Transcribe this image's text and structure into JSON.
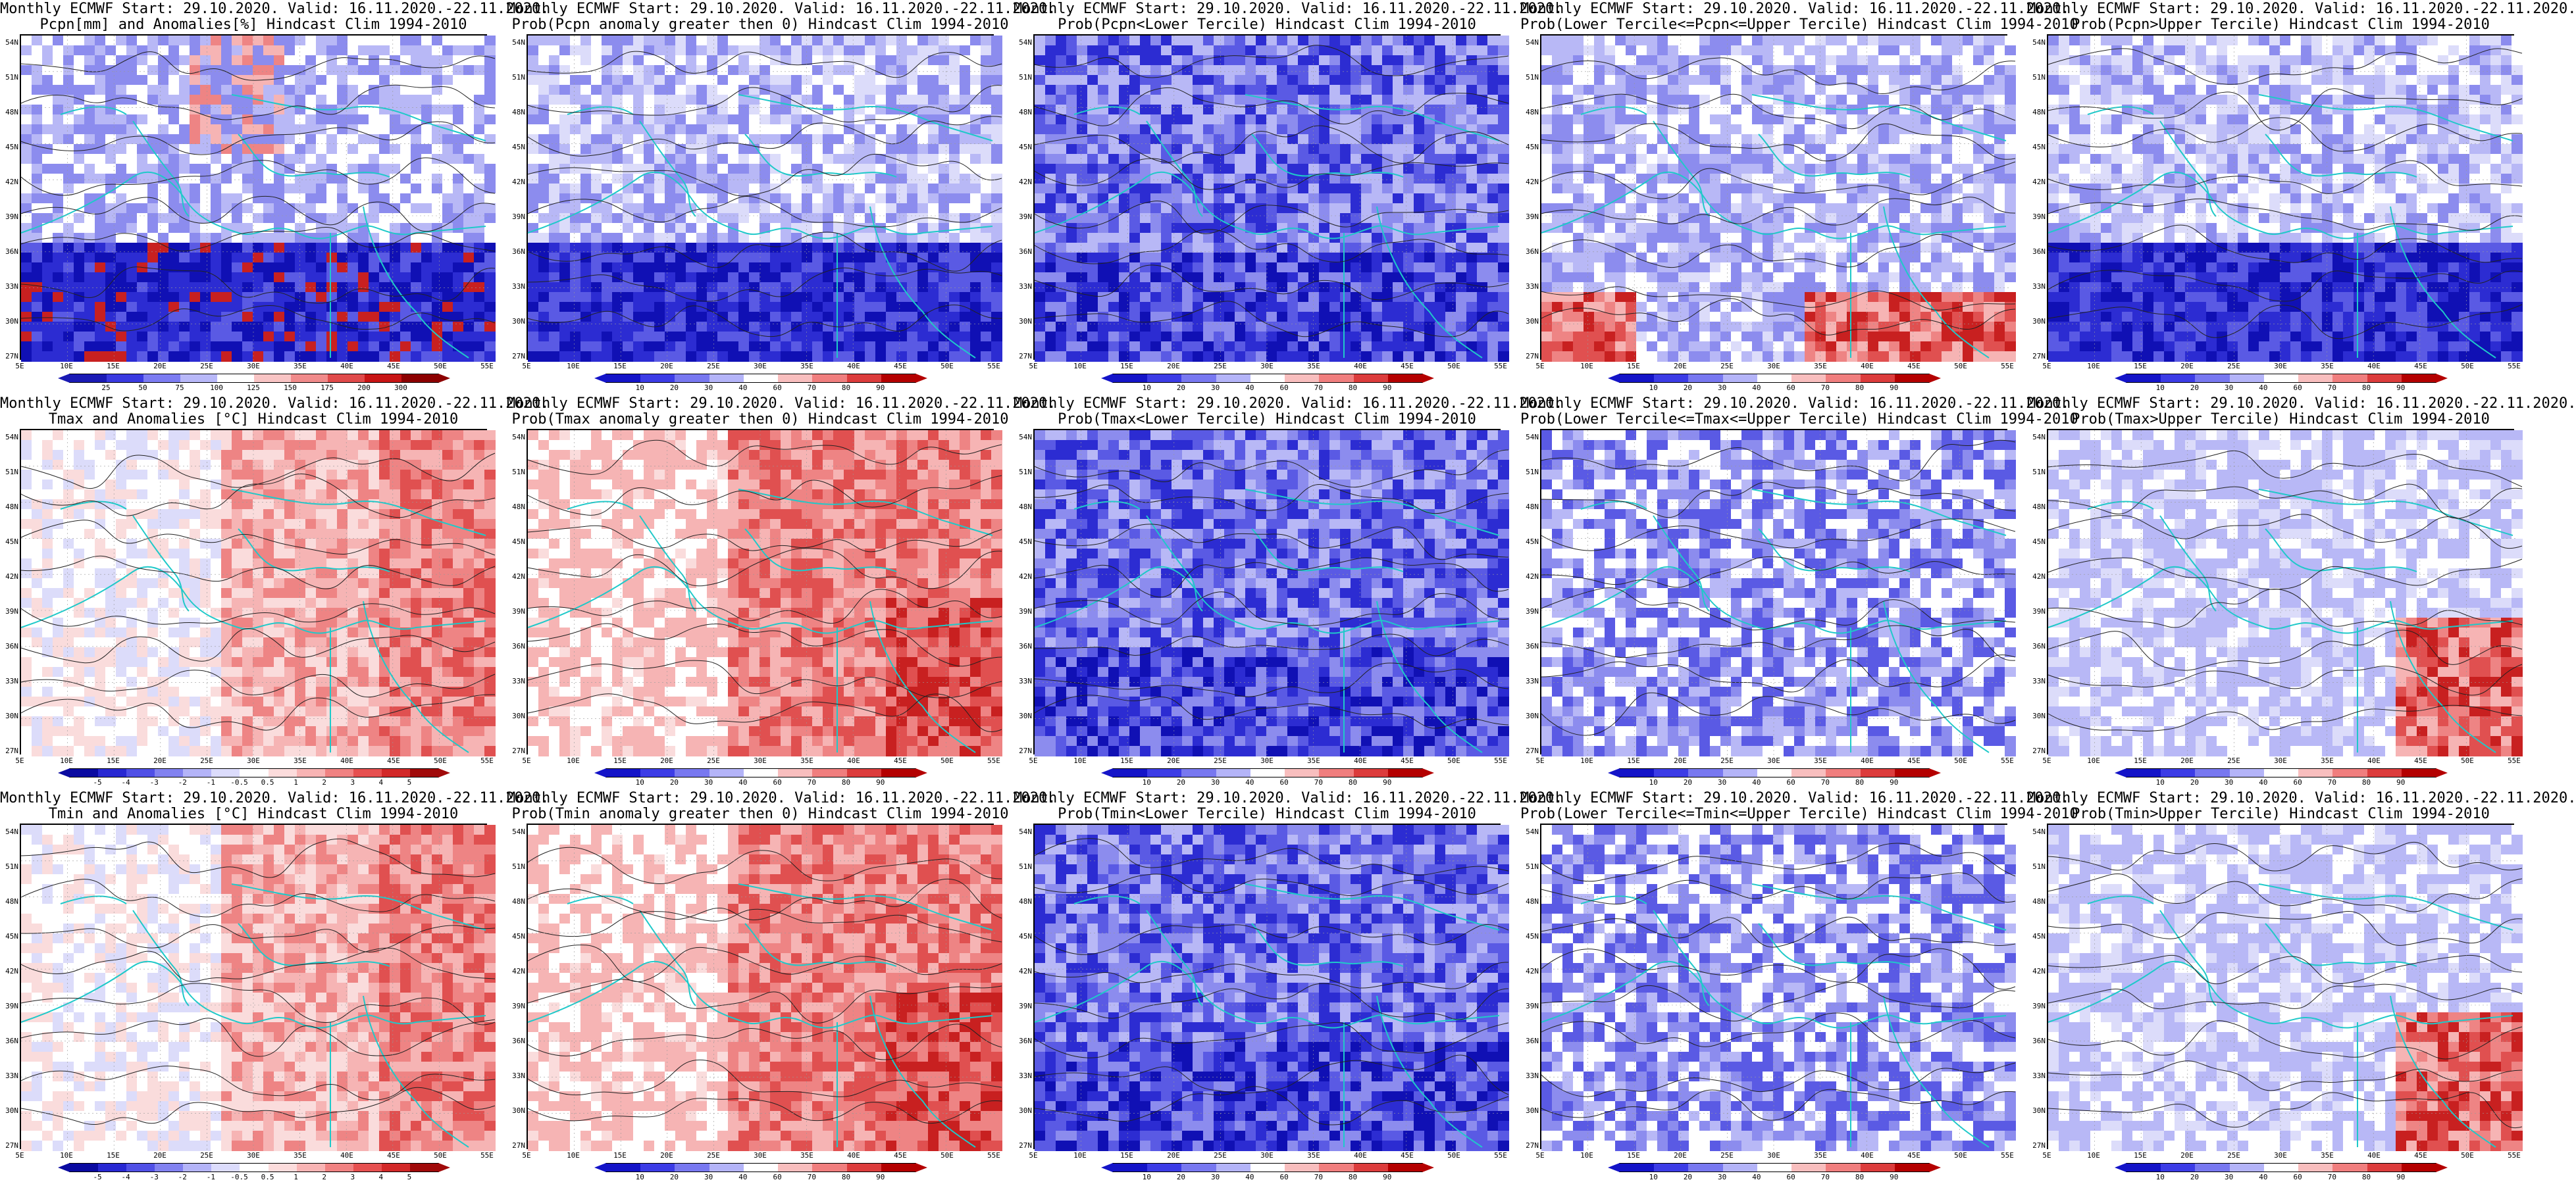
{
  "colors": {
    "coast": "#1fc9c9",
    "contour": "#222222",
    "wet_blue": "#1414c8",
    "deep_red": "#c80000"
  },
  "axes": {
    "lat_labels": [
      "54N",
      "51N",
      "48N",
      "45N",
      "42N",
      "39N",
      "36N",
      "33N",
      "30N",
      "27N"
    ],
    "lon_labels": [
      "5E",
      "10E",
      "15E",
      "20E",
      "25E",
      "30E",
      "35E",
      "40E",
      "45E",
      "50E",
      "55E"
    ]
  },
  "colorbars": {
    "pcpn_anom": [
      "25",
      "50",
      "75",
      "100",
      "125",
      "150",
      "175",
      "200",
      "300"
    ],
    "prob": [
      "10",
      "20",
      "30",
      "40",
      "60",
      "70",
      "80",
      "90"
    ],
    "temp_anom": [
      "-5",
      "-4",
      "-3",
      "-2",
      "-1",
      "-0.5",
      "0.5",
      "1",
      "2",
      "3",
      "4",
      "5"
    ]
  },
  "panels": [
    {
      "title1": "Monthly ECMWF Start: 29.10.2020. Valid: 16.11.2020.-22.11.2020.",
      "title2": "Pcpn[mm] and Anomalies[%] Hindcast Clim 1994-2010",
      "palette": "pcpn_anom",
      "scheme": "pcpn_anom"
    },
    {
      "title1": "Monthly ECMWF Start: 29.10.2020. Valid: 16.11.2020.-22.11.2020.",
      "title2": "Prob(Pcpn anomaly greater then 0) Hindcast Clim 1994-2010",
      "palette": "prob",
      "scheme": "blue_south"
    },
    {
      "title1": "Monthly ECMWF Start: 29.10.2020. Valid: 16.11.2020.-22.11.2020.",
      "title2": "Prob(Pcpn<Lower Tercile) Hindcast Clim 1994-2010",
      "palette": "prob",
      "scheme": "blue_all"
    },
    {
      "title1": "Monthly ECMWF Start: 29.10.2020. Valid: 16.11.2020.-22.11.2020.",
      "title2": "Prob(Lower Tercile<=Pcpn<=Upper Tercile) Hindcast Clim 1994-2010",
      "palette": "prob",
      "scheme": "red_south"
    },
    {
      "title1": "Monthly ECMWF Start: 29.10.2020. Valid: 16.11.2020.-22.11.2020.",
      "title2": "Prob(Pcpn>Upper Tercile) Hindcast Clim 1994-2010",
      "palette": "prob",
      "scheme": "blue_south"
    },
    {
      "title1": "Monthly ECMWF Start: 29.10.2020. Valid: 16.11.2020.-22.11.2020.",
      "title2": "Tmax and Anomalies [°C] Hindcast Clim 1994-2010",
      "palette": "temp_anom",
      "scheme": "red_east"
    },
    {
      "title1": "Monthly ECMWF Start: 29.10.2020. Valid: 16.11.2020.-22.11.2020.",
      "title2": "Prob(Tmax anomaly greater then 0) Hindcast Clim 1994-2010",
      "palette": "prob",
      "scheme": "red_east_strong"
    },
    {
      "title1": "Monthly ECMWF Start: 29.10.2020. Valid: 16.11.2020.-22.11.2020.",
      "title2": "Prob(Tmax<Lower Tercile) Hindcast Clim 1994-2010",
      "palette": "prob",
      "scheme": "blue_all"
    },
    {
      "title1": "Monthly ECMWF Start: 29.10.2020. Valid: 16.11.2020.-22.11.2020.",
      "title2": "Prob(Lower Tercile<=Tmax<=Upper Tercile) Hindcast Clim 1994-2010",
      "palette": "prob",
      "scheme": "blue_mixed"
    },
    {
      "title1": "Monthly ECMWF Start: 29.10.2020. Valid: 16.11.2020.-22.11.2020.",
      "title2": "Prob(Tmax>Upper Tercile) Hindcast Clim 1994-2010",
      "palette": "prob",
      "scheme": "red_southeast"
    },
    {
      "title1": "Monthly ECMWF Start: 29.10.2020. Valid: 16.11.2020.-22.11.2020.",
      "title2": "Tmin and Anomalies [°C] Hindcast Clim 1994-2010",
      "palette": "temp_anom",
      "scheme": "red_east"
    },
    {
      "title1": "Monthly ECMWF Start: 29.10.2020. Valid: 16.11.2020.-22.11.2020.",
      "title2": "Prob(Tmin anomaly greater then 0) Hindcast Clim 1994-2010",
      "palette": "prob",
      "scheme": "red_east_strong"
    },
    {
      "title1": "Monthly ECMWF Start: 29.10.2020. Valid: 16.11.2020.-22.11.2020.",
      "title2": "Prob(Tmin<Lower Tercile) Hindcast Clim 1994-2010",
      "palette": "prob",
      "scheme": "blue_all"
    },
    {
      "title1": "Monthly ECMWF Start: 29.10.2020. Valid: 16.11.2020.-22.11.2020.",
      "title2": "Prob(Lower Tercile<=Tmin<=Upper Tercile) Hindcast Clim 1994-2010",
      "palette": "prob",
      "scheme": "blue_mixed"
    },
    {
      "title1": "Monthly ECMWF Start: 29.10.2020. Valid: 16.11.2020.-22.11.2020.",
      "title2": "Prob(Tmin>Upper Tercile) Hindcast Clim 1994-2010",
      "palette": "prob",
      "scheme": "red_southeast"
    }
  ]
}
